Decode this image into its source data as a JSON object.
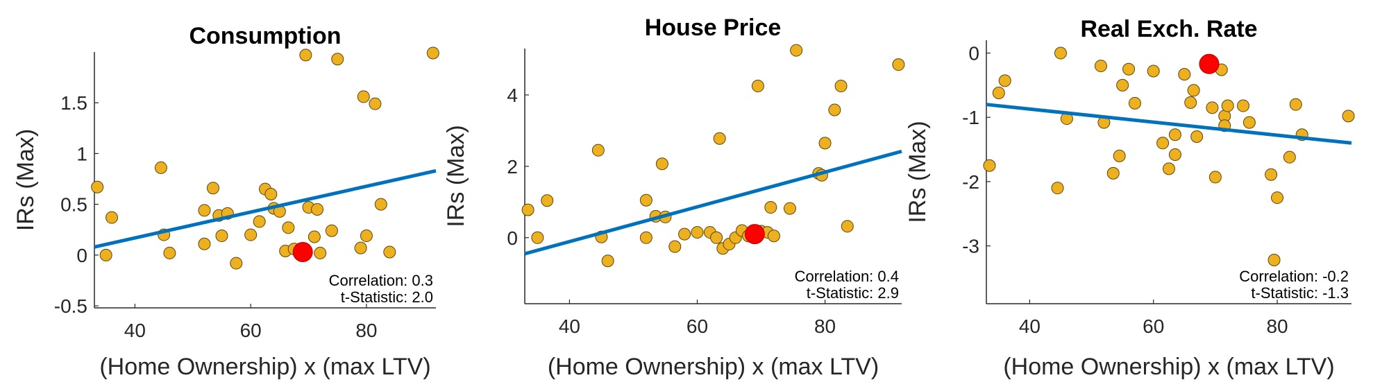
{
  "colors": {
    "point_fill": "#EDB120",
    "point_edge": "#5a4410",
    "fit_line": "#0072BD",
    "highlight": "#FF0000",
    "axis": "#262626",
    "background": "#FFFFFF"
  },
  "chart_data": [
    {
      "type": "scatter",
      "title": "Consumption",
      "xlabel": "(Home Ownership) x (max LTV)",
      "ylabel": "IRs (Max)",
      "xlim": [
        33,
        92
      ],
      "ylim": [
        -0.52,
        2.0
      ],
      "xticks": [
        40,
        60,
        80
      ],
      "yticks": [
        -0.5,
        0,
        0.5,
        1,
        1.5
      ],
      "ytick_labels": [
        "-0.5",
        "0",
        "0.5",
        "1",
        "1.5"
      ],
      "grid": false,
      "fit_line": {
        "x": [
          33,
          92
        ],
        "y": [
          0.08,
          0.83
        ]
      },
      "highlight_point": {
        "x": 69,
        "y": 0.03
      },
      "stats": {
        "correlation": "Correlation: 0.3",
        "t_statistic": "t-Statistic: 2.0"
      },
      "points": [
        {
          "x": 33.5,
          "y": 0.67
        },
        {
          "x": 35,
          "y": 0.0
        },
        {
          "x": 36,
          "y": 0.37
        },
        {
          "x": 44.5,
          "y": 0.86
        },
        {
          "x": 45,
          "y": 0.2
        },
        {
          "x": 46,
          "y": 0.02
        },
        {
          "x": 52,
          "y": 0.44
        },
        {
          "x": 52,
          "y": 0.11
        },
        {
          "x": 53.5,
          "y": 0.66
        },
        {
          "x": 54.5,
          "y": 0.39
        },
        {
          "x": 55,
          "y": 0.19
        },
        {
          "x": 56,
          "y": 0.41
        },
        {
          "x": 57.5,
          "y": -0.08
        },
        {
          "x": 60,
          "y": 0.2
        },
        {
          "x": 61.5,
          "y": 0.33
        },
        {
          "x": 62.5,
          "y": 0.65
        },
        {
          "x": 63.5,
          "y": 0.6
        },
        {
          "x": 64,
          "y": 0.46
        },
        {
          "x": 65,
          "y": 0.43
        },
        {
          "x": 66,
          "y": 0.04
        },
        {
          "x": 66.5,
          "y": 0.27
        },
        {
          "x": 67.5,
          "y": 0.06
        },
        {
          "x": 69.5,
          "y": 1.97
        },
        {
          "x": 70,
          "y": 0.47
        },
        {
          "x": 71,
          "y": 0.18
        },
        {
          "x": 71.5,
          "y": 0.45
        },
        {
          "x": 72,
          "y": 0.02
        },
        {
          "x": 74,
          "y": 0.24
        },
        {
          "x": 75,
          "y": 1.93
        },
        {
          "x": 79,
          "y": 0.07
        },
        {
          "x": 79.5,
          "y": 1.56
        },
        {
          "x": 80,
          "y": 0.19
        },
        {
          "x": 81.5,
          "y": 1.49
        },
        {
          "x": 82.5,
          "y": 0.5
        },
        {
          "x": 84,
          "y": 0.03
        },
        {
          "x": 91.5,
          "y": 1.99
        }
      ]
    },
    {
      "type": "scatter",
      "title": "House Price",
      "xlabel": "(Home Ownership) x (max LTV)",
      "ylabel": "IRs (Max)",
      "xlim": [
        33,
        92
      ],
      "ylim": [
        -1.85,
        5.3
      ],
      "xticks": [
        40,
        60,
        80
      ],
      "yticks": [
        0,
        2,
        4
      ],
      "ytick_labels": [
        "0",
        "2",
        "4"
      ],
      "grid": false,
      "fit_line": {
        "x": [
          33,
          92
        ],
        "y": [
          -0.45,
          2.42
        ]
      },
      "highlight_point": {
        "x": 69,
        "y": 0.1
      },
      "stats": {
        "correlation": "Correlation: 0.4",
        "t_statistic": "t-Statistic: 2.9"
      },
      "points": [
        {
          "x": 33.5,
          "y": 0.78
        },
        {
          "x": 35,
          "y": 0.0
        },
        {
          "x": 36.5,
          "y": 1.04
        },
        {
          "x": 44.5,
          "y": 2.45
        },
        {
          "x": 45,
          "y": 0.02
        },
        {
          "x": 46,
          "y": -0.65
        },
        {
          "x": 52,
          "y": 1.05
        },
        {
          "x": 52,
          "y": 0.0
        },
        {
          "x": 53.5,
          "y": 0.6
        },
        {
          "x": 54.5,
          "y": 2.07
        },
        {
          "x": 55,
          "y": 0.58
        },
        {
          "x": 56.5,
          "y": -0.25
        },
        {
          "x": 58,
          "y": 0.1
        },
        {
          "x": 60,
          "y": 0.15
        },
        {
          "x": 62,
          "y": 0.15
        },
        {
          "x": 63,
          "y": 0.0
        },
        {
          "x": 63.5,
          "y": 2.78
        },
        {
          "x": 64,
          "y": -0.3
        },
        {
          "x": 65,
          "y": -0.18
        },
        {
          "x": 66,
          "y": 0.0
        },
        {
          "x": 67,
          "y": 0.2
        },
        {
          "x": 68,
          "y": 0.05
        },
        {
          "x": 69.5,
          "y": 4.25
        },
        {
          "x": 70,
          "y": 0.18
        },
        {
          "x": 71,
          "y": 0.15
        },
        {
          "x": 71.5,
          "y": 0.85
        },
        {
          "x": 72,
          "y": 0.05
        },
        {
          "x": 74.5,
          "y": 0.82
        },
        {
          "x": 75.5,
          "y": 5.25
        },
        {
          "x": 79,
          "y": 1.8
        },
        {
          "x": 79.5,
          "y": 1.75
        },
        {
          "x": 80,
          "y": 2.65
        },
        {
          "x": 81.5,
          "y": 3.58
        },
        {
          "x": 82.5,
          "y": 4.25
        },
        {
          "x": 83.5,
          "y": 0.32
        },
        {
          "x": 91.5,
          "y": 4.85
        }
      ]
    },
    {
      "type": "scatter",
      "title": "Real Exch. Rate",
      "xlabel": "(Home Ownership) x (max LTV)",
      "ylabel": "IRs (Max)",
      "xlim": [
        33,
        92
      ],
      "ylim": [
        -3.9,
        0.2
      ],
      "xticks": [
        40,
        60,
        80
      ],
      "yticks": [
        -3,
        -2,
        -1,
        0
      ],
      "ytick_labels": [
        "-3",
        "-2",
        "-1",
        "0"
      ],
      "grid": false,
      "fit_line": {
        "x": [
          33,
          92
        ],
        "y": [
          -0.8,
          -1.4
        ]
      },
      "highlight_point": {
        "x": 69,
        "y": -0.17
      },
      "stats": {
        "correlation": "Correlation: -0.2",
        "t_statistic": "t-Statistic: -1.3"
      },
      "points": [
        {
          "x": 33.5,
          "y": -1.75
        },
        {
          "x": 35,
          "y": -0.62
        },
        {
          "x": 36,
          "y": -0.43
        },
        {
          "x": 44.5,
          "y": -2.1
        },
        {
          "x": 45,
          "y": 0.0
        },
        {
          "x": 46,
          "y": -1.02
        },
        {
          "x": 51.5,
          "y": -0.2
        },
        {
          "x": 52,
          "y": -1.08
        },
        {
          "x": 53.5,
          "y": -1.87
        },
        {
          "x": 54.5,
          "y": -1.6
        },
        {
          "x": 55,
          "y": -0.5
        },
        {
          "x": 56,
          "y": -0.25
        },
        {
          "x": 57,
          "y": -0.78
        },
        {
          "x": 60,
          "y": -0.28
        },
        {
          "x": 61.5,
          "y": -1.4
        },
        {
          "x": 62.5,
          "y": -1.8
        },
        {
          "x": 63.5,
          "y": -1.27
        },
        {
          "x": 63.5,
          "y": -1.58
        },
        {
          "x": 65,
          "y": -0.33
        },
        {
          "x": 66,
          "y": -0.77
        },
        {
          "x": 66.5,
          "y": -0.58
        },
        {
          "x": 67,
          "y": -1.3
        },
        {
          "x": 69.5,
          "y": -0.85
        },
        {
          "x": 70,
          "y": -1.93
        },
        {
          "x": 71,
          "y": -0.26
        },
        {
          "x": 71.5,
          "y": -0.98
        },
        {
          "x": 71.5,
          "y": -1.13
        },
        {
          "x": 72,
          "y": -0.82
        },
        {
          "x": 74.5,
          "y": -0.82
        },
        {
          "x": 75.5,
          "y": -1.08
        },
        {
          "x": 79,
          "y": -1.89
        },
        {
          "x": 79.5,
          "y": -3.22
        },
        {
          "x": 80,
          "y": -2.25
        },
        {
          "x": 82,
          "y": -1.62
        },
        {
          "x": 83,
          "y": -0.8
        },
        {
          "x": 84,
          "y": -1.27
        },
        {
          "x": 91.5,
          "y": -0.98
        }
      ]
    }
  ]
}
